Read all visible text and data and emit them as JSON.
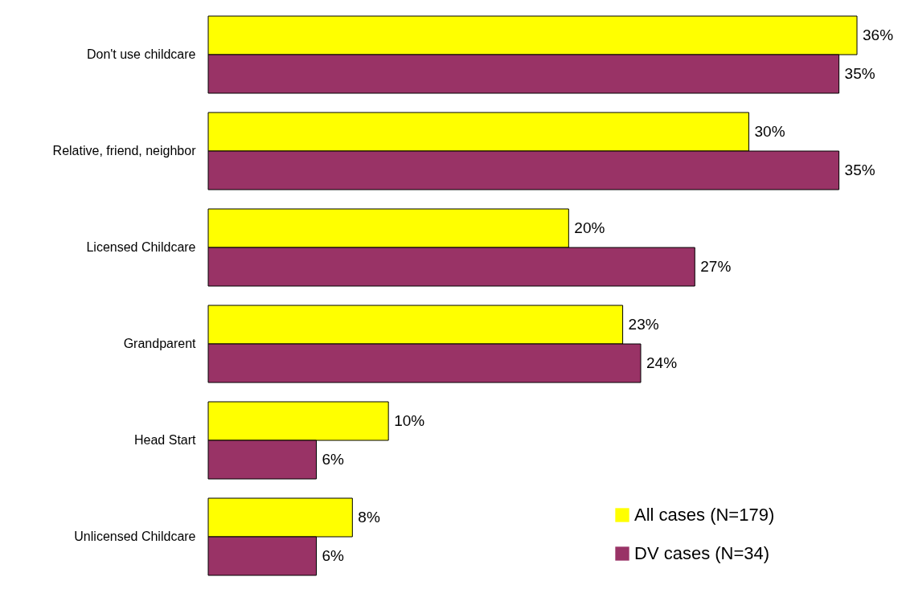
{
  "chart_data": {
    "type": "bar",
    "orientation": "horizontal",
    "categories": [
      "Don't use childcare",
      "Relative, friend, neighbor",
      "Licensed Childcare",
      "Grandparent",
      "Head Start",
      "Unlicensed Childcare"
    ],
    "series": [
      {
        "name": "All cases (N=179)",
        "color": "#ffff00",
        "values": [
          36,
          30,
          20,
          23,
          10,
          8
        ],
        "value_labels": [
          "36%",
          "30%",
          "20%",
          "23%",
          "10%",
          "8%"
        ]
      },
      {
        "name": "DV cases (N=34)",
        "color": "#993366",
        "values": [
          35,
          35,
          27,
          24,
          6,
          6
        ],
        "value_labels": [
          "35%",
          "35%",
          "27%",
          "24%",
          "6%",
          "6%"
        ]
      }
    ],
    "legend": "bottom right",
    "grid": false
  }
}
